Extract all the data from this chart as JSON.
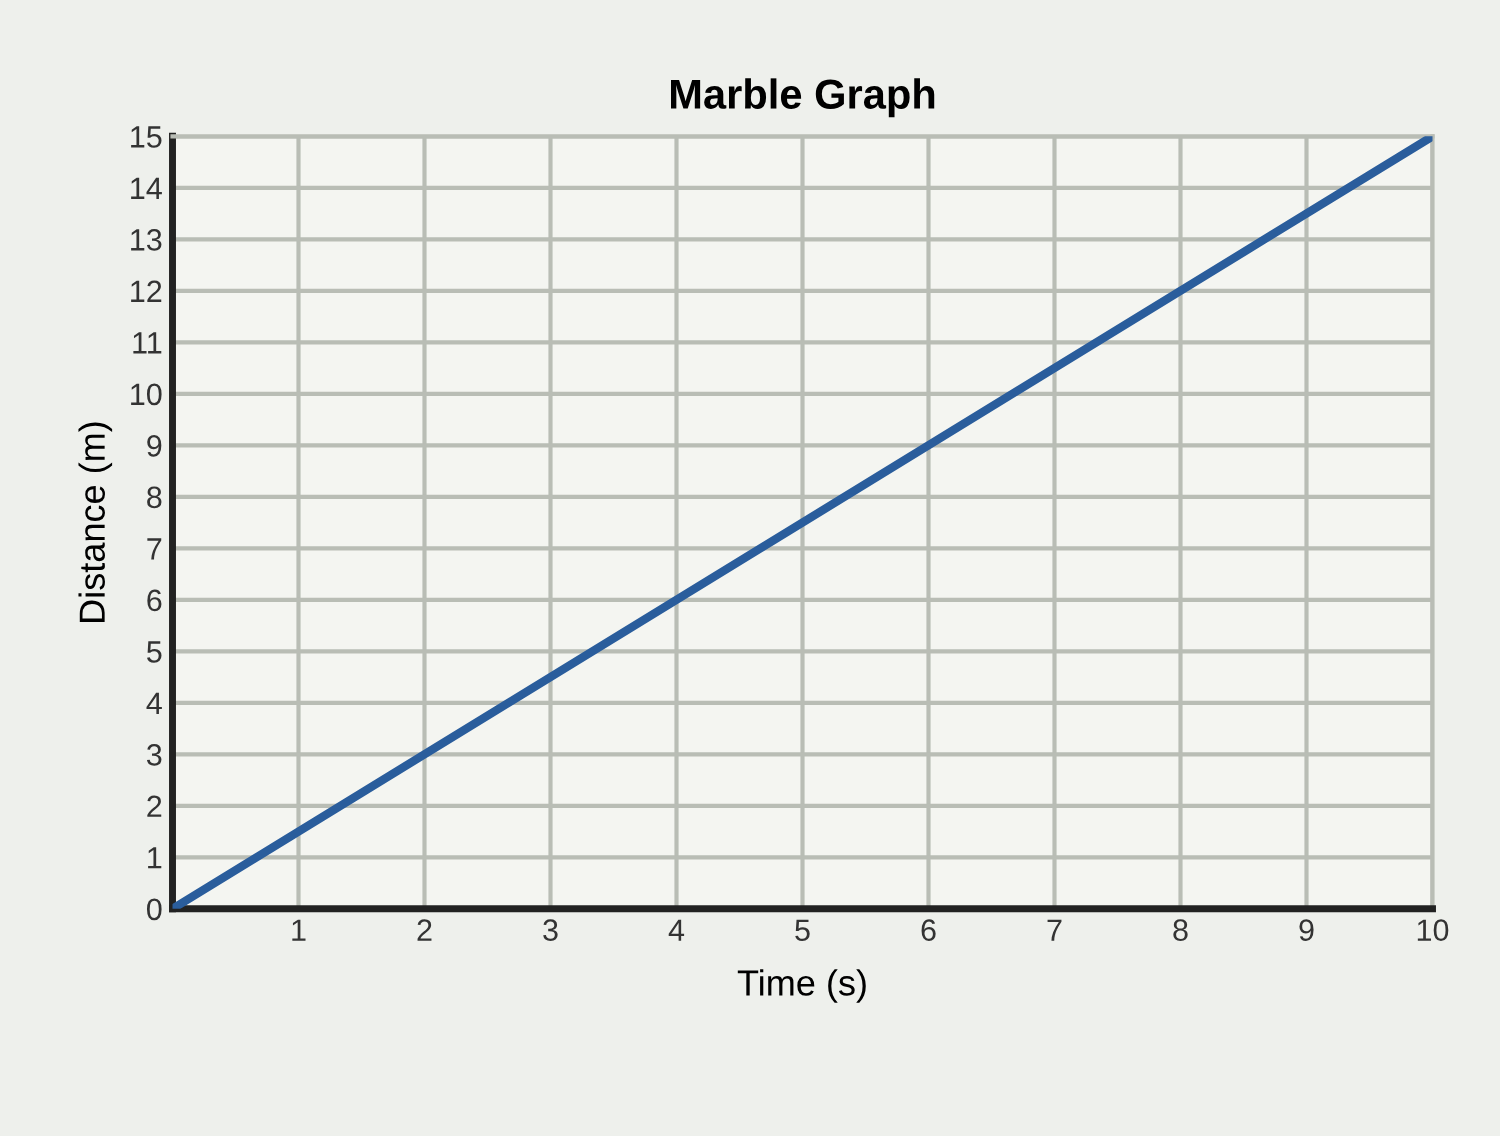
{
  "chart_data": {
    "type": "line",
    "title": "Marble Graph",
    "xlabel": "Time (s)",
    "ylabel": "Distance (m)",
    "x": [
      0,
      10
    ],
    "series": [
      {
        "color": "#2a5d9c",
        "values": [
          0,
          15
        ]
      }
    ],
    "xlim": [
      0,
      10
    ],
    "ylim": [
      0,
      15
    ],
    "xticks": [
      1,
      2,
      3,
      4,
      5,
      6,
      7,
      8,
      9,
      10
    ],
    "yticks": [
      0,
      1,
      2,
      3,
      4,
      5,
      6,
      7,
      8,
      9,
      10,
      11,
      12,
      13,
      14,
      15
    ],
    "grid": true,
    "marker": "none",
    "line_style": "solid"
  }
}
